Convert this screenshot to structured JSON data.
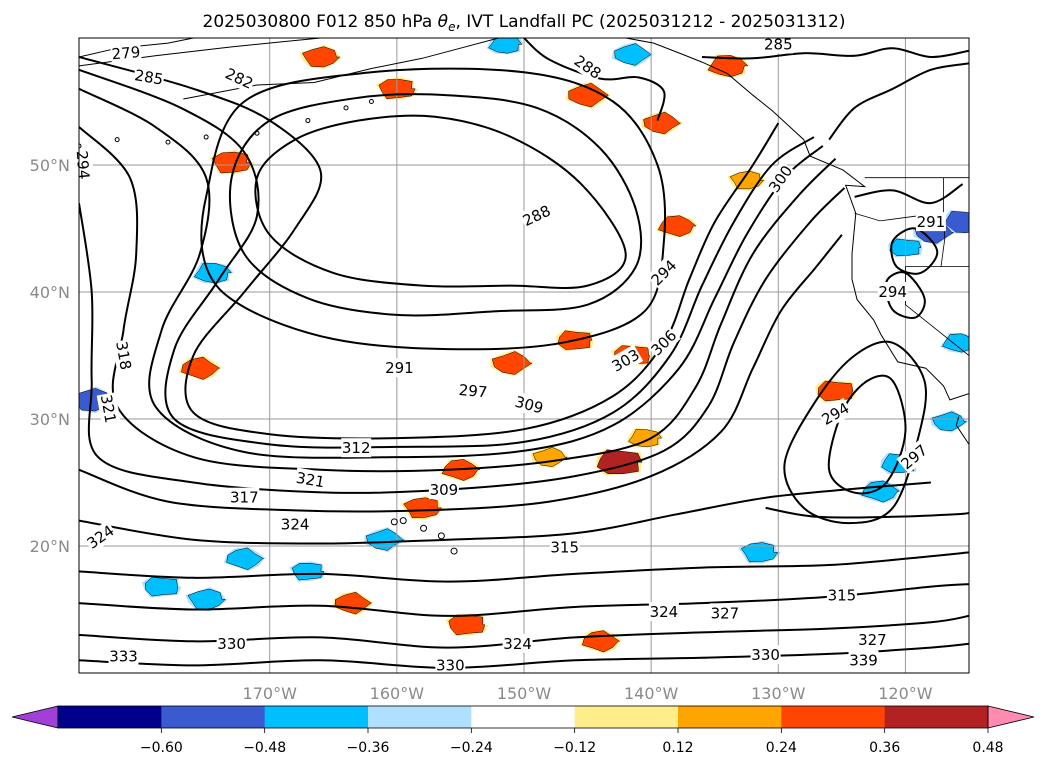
{
  "chart_data": {
    "type": "contour-map",
    "title": "2025030800 F012 850 hPa θe, IVT Landfall PC (2025031212 - 2025031312)",
    "title_main": "2025030800 F012 850 hPa ",
    "title_symbol": "θ",
    "title_sub": "e",
    "title_rest": ", IVT Landfall PC (2025031212 - 2025031312)",
    "projection": "PlateCarree",
    "extent": {
      "lon": [
        -185,
        -115
      ],
      "lat": [
        10,
        60
      ]
    },
    "grid": true,
    "lon_ticks": [
      {
        "lon": -170,
        "label": "170°W"
      },
      {
        "lon": -160,
        "label": "160°W"
      },
      {
        "lon": -150,
        "label": "150°W"
      },
      {
        "lon": -140,
        "label": "140°W"
      },
      {
        "lon": -130,
        "label": "130°W"
      },
      {
        "lon": -120,
        "label": "120°W"
      }
    ],
    "lat_ticks": [
      {
        "lat": 20,
        "label": "20°N"
      },
      {
        "lat": 30,
        "label": "30°N"
      },
      {
        "lat": 40,
        "label": "40°N"
      },
      {
        "lat": 50,
        "label": "50°N"
      }
    ],
    "contour_field": "850 hPa θe (K)",
    "contour_labels": [
      {
        "text": "279",
        "lon": -181.3,
        "lat": 58.8,
        "rot": -5
      },
      {
        "text": "285",
        "lon": -179.5,
        "lat": 56.9,
        "rot": 10
      },
      {
        "text": "282",
        "lon": -172.4,
        "lat": 56.8,
        "rot": 25
      },
      {
        "text": "294",
        "lon": -184.7,
        "lat": 50.0,
        "rot": 85
      },
      {
        "text": "288",
        "lon": -145.0,
        "lat": 57.7,
        "rot": 35
      },
      {
        "text": "288",
        "lon": -149.0,
        "lat": 46.0,
        "rot": -25
      },
      {
        "text": "285",
        "lon": -130.0,
        "lat": 59.5,
        "rot": 0
      },
      {
        "text": "300",
        "lon": -129.8,
        "lat": 48.9,
        "rot": -55
      },
      {
        "text": "294",
        "lon": -139.0,
        "lat": 41.5,
        "rot": -45
      },
      {
        "text": "306",
        "lon": -139.0,
        "lat": 36.0,
        "rot": -45
      },
      {
        "text": "303",
        "lon": -142.0,
        "lat": 34.6,
        "rot": -30
      },
      {
        "text": "291",
        "lon": -159.8,
        "lat": 34.0,
        "rot": 0
      },
      {
        "text": "297",
        "lon": -154.0,
        "lat": 32.2,
        "rot": 5
      },
      {
        "text": "309",
        "lon": -149.6,
        "lat": 31.1,
        "rot": 15
      },
      {
        "text": "318",
        "lon": -181.5,
        "lat": 35.0,
        "rot": 80
      },
      {
        "text": "321",
        "lon": -182.7,
        "lat": 30.8,
        "rot": 80
      },
      {
        "text": "312",
        "lon": -163.2,
        "lat": 27.7,
        "rot": 0
      },
      {
        "text": "321",
        "lon": -166.8,
        "lat": 25.2,
        "rot": 10
      },
      {
        "text": "317",
        "lon": -172.0,
        "lat": 23.8,
        "rot": 0
      },
      {
        "text": "324",
        "lon": -183.3,
        "lat": 20.7,
        "rot": -35
      },
      {
        "text": "324",
        "lon": -168.0,
        "lat": 21.7,
        "rot": 0
      },
      {
        "text": "309",
        "lon": -156.3,
        "lat": 24.4,
        "rot": 0
      },
      {
        "text": "315",
        "lon": -146.8,
        "lat": 19.9,
        "rot": 0
      },
      {
        "text": "324",
        "lon": -139.0,
        "lat": 14.8,
        "rot": 0
      },
      {
        "text": "327",
        "lon": -134.2,
        "lat": 14.7,
        "rot": 0
      },
      {
        "text": "315",
        "lon": -125.0,
        "lat": 16.1,
        "rot": 0
      },
      {
        "text": "324",
        "lon": -150.5,
        "lat": 12.3,
        "rot": 0
      },
      {
        "text": "327",
        "lon": -122.6,
        "lat": 12.6,
        "rot": 0
      },
      {
        "text": "339",
        "lon": -123.3,
        "lat": 11.0,
        "rot": 0
      },
      {
        "text": "330",
        "lon": -131.0,
        "lat": 11.4,
        "rot": 0
      },
      {
        "text": "330",
        "lon": -155.8,
        "lat": 10.6,
        "rot": 0
      },
      {
        "text": "333",
        "lon": -181.5,
        "lat": 11.3,
        "rot": 0
      },
      {
        "text": "330",
        "lon": -173.0,
        "lat": 12.3,
        "rot": 0
      },
      {
        "text": "294",
        "lon": -125.5,
        "lat": 30.4,
        "rot": -30
      },
      {
        "text": "294",
        "lon": -121.0,
        "lat": 40.0,
        "rot": 0
      },
      {
        "text": "291",
        "lon": -118.0,
        "lat": 45.5,
        "rot": 0
      },
      {
        "text": "297",
        "lon": -119.3,
        "lat": 27.0,
        "rot": -40
      }
    ],
    "colorbar": {
      "variable": "IVT Landfall PC",
      "extend": "both",
      "boundaries": [
        -0.72,
        -0.6,
        -0.48,
        -0.36,
        -0.24,
        -0.12,
        0.12,
        0.24,
        0.36,
        0.48,
        0.6,
        0.72
      ],
      "colors": [
        "#a23fd6",
        "#00008b",
        "#3a5bd0",
        "#00bfff",
        "#b0e0ff",
        "#ffffff",
        "#ffec8b",
        "#ffa500",
        "#ff4500",
        "#b22222",
        "#ff8cb0"
      ],
      "tick_values": [
        -0.6,
        -0.48,
        -0.36,
        -0.24,
        -0.12,
        0.12,
        0.24,
        0.36,
        0.48,
        0.6
      ],
      "tick_labels": [
        "−0.60",
        "−0.48",
        "−0.36",
        "−0.24",
        "−0.12",
        "0.12",
        "0.24",
        "0.36",
        "0.48",
        "0.60"
      ]
    },
    "shaded_regions": [
      {
        "lon": -151,
        "lat": 34.4,
        "value": 0.4
      },
      {
        "lon": -146,
        "lat": 36.2,
        "value": 0.36
      },
      {
        "lon": -145,
        "lat": 55.5,
        "value": 0.42
      },
      {
        "lon": -141.5,
        "lat": 35.0,
        "value": 0.4
      },
      {
        "lon": -175.5,
        "lat": 34.0,
        "value": 0.38
      },
      {
        "lon": -160,
        "lat": 56.0,
        "value": 0.38
      },
      {
        "lon": -155,
        "lat": 26.0,
        "value": 0.36
      },
      {
        "lon": -158,
        "lat": 23.0,
        "value": 0.38
      },
      {
        "lon": -134,
        "lat": 57.8,
        "value": 0.4
      },
      {
        "lon": -166,
        "lat": 58.5,
        "value": 0.36
      },
      {
        "lon": -140.5,
        "lat": 28.5,
        "value": 0.3
      },
      {
        "lon": -148,
        "lat": 27.0,
        "value": 0.3
      },
      {
        "lon": -142.5,
        "lat": 26.6,
        "value": 0.54
      },
      {
        "lon": -139.2,
        "lat": 53.3,
        "value": 0.36
      },
      {
        "lon": -125.5,
        "lat": 32.2,
        "value": 0.4
      },
      {
        "lon": -163.5,
        "lat": 15.5,
        "value": 0.36
      },
      {
        "lon": -154.5,
        "lat": 13.8,
        "value": 0.4
      },
      {
        "lon": -144,
        "lat": 12.5,
        "value": 0.36
      },
      {
        "lon": -173,
        "lat": 50.2,
        "value": 0.42
      },
      {
        "lon": -138,
        "lat": 45.2,
        "value": 0.36
      },
      {
        "lon": -132.5,
        "lat": 48.8,
        "value": 0.3
      },
      {
        "lon": -174.5,
        "lat": 41.5,
        "value": -0.36
      },
      {
        "lon": -184,
        "lat": 31.5,
        "value": -0.42
      },
      {
        "lon": -115.5,
        "lat": 45.5,
        "value": -0.44
      },
      {
        "lon": -117.8,
        "lat": 44.7,
        "value": -0.38
      },
      {
        "lon": -120.0,
        "lat": 43.5,
        "value": -0.3
      },
      {
        "lon": -141.5,
        "lat": 58.7,
        "value": -0.36
      },
      {
        "lon": -178.5,
        "lat": 16.8,
        "value": -0.36
      },
      {
        "lon": -172,
        "lat": 19.0,
        "value": -0.36
      },
      {
        "lon": -167,
        "lat": 18.0,
        "value": -0.3
      },
      {
        "lon": -122.0,
        "lat": 24.3,
        "value": -0.36
      },
      {
        "lon": -131.5,
        "lat": 19.5,
        "value": -0.36
      },
      {
        "lon": -115.8,
        "lat": 36.0,
        "value": -0.3
      },
      {
        "lon": -175,
        "lat": 15.8,
        "value": -0.36
      },
      {
        "lon": -151.5,
        "lat": 59.5,
        "value": -0.3
      },
      {
        "lon": -116.6,
        "lat": 29.8,
        "value": -0.3
      },
      {
        "lon": -120.5,
        "lat": 26.5,
        "value": -0.36
      },
      {
        "lon": -161.0,
        "lat": 20.5,
        "value": -0.36
      }
    ]
  }
}
